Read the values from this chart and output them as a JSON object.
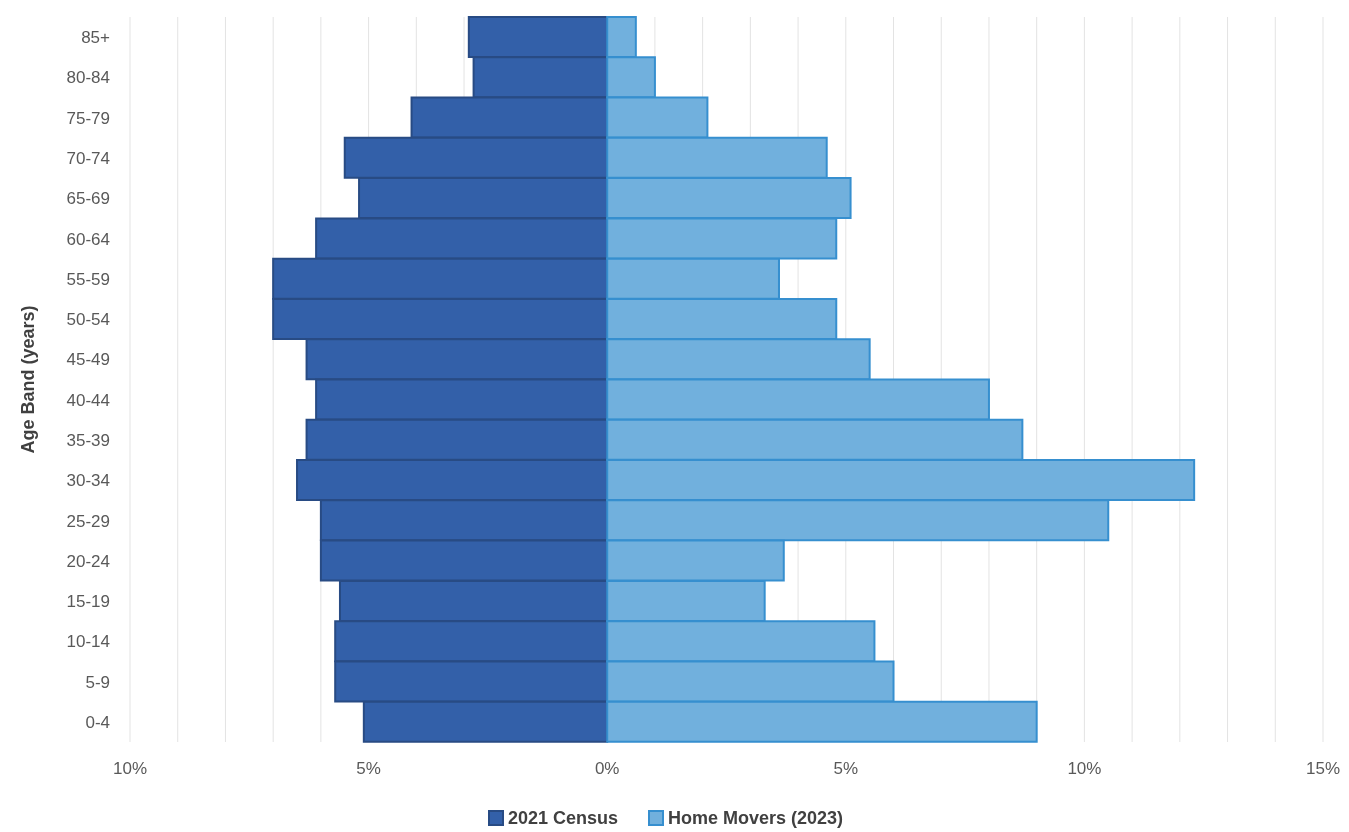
{
  "chart_data": {
    "type": "bar",
    "orientation": "horizontal",
    "stacked": true,
    "ylabel": "Age Band (years)",
    "categories": [
      "85+",
      "80-84",
      "75-79",
      "70-74",
      "65-69",
      "60-64",
      "55-59",
      "50-54",
      "45-49",
      "40-44",
      "35-39",
      "30-34",
      "25-29",
      "20-24",
      "15-19",
      "10-14",
      "5-9",
      "0-4"
    ],
    "series": [
      {
        "name": "2021 Census",
        "color": "#3360a9",
        "values": [
          -2.9,
          -2.8,
          -4.1,
          -5.5,
          -5.2,
          -6.1,
          -7.0,
          -7.0,
          -6.3,
          -6.1,
          -6.3,
          -6.5,
          -6.0,
          -6.0,
          -5.6,
          -5.7,
          -5.7,
          -5.1
        ]
      },
      {
        "name": "Home Movers (2023)",
        "color": "#71b0dd",
        "values": [
          0.6,
          1.0,
          2.1,
          4.6,
          5.1,
          4.8,
          3.6,
          4.8,
          5.5,
          8.0,
          8.7,
          12.3,
          10.5,
          3.7,
          3.3,
          5.6,
          6.0,
          9.0
        ]
      }
    ],
    "xlim": [
      -10,
      15
    ],
    "xticks": [
      {
        "value": -10,
        "label": "10%"
      },
      {
        "value": -9,
        "label": null
      },
      {
        "value": -8,
        "label": null
      },
      {
        "value": -7,
        "label": null
      },
      {
        "value": -6,
        "label": null
      },
      {
        "value": -5,
        "label": "5%"
      },
      {
        "value": -4,
        "label": null
      },
      {
        "value": -3,
        "label": null
      },
      {
        "value": 0,
        "label": "0%"
      },
      {
        "value": 1,
        "label": null
      },
      {
        "value": 2,
        "label": null
      },
      {
        "value": 3,
        "label": null
      },
      {
        "value": 4,
        "label": null
      },
      {
        "value": 5,
        "label": "5%"
      },
      {
        "value": 6,
        "label": null
      },
      {
        "value": 7,
        "label": null
      },
      {
        "value": 8,
        "label": null
      },
      {
        "value": 9,
        "label": null
      },
      {
        "value": 10,
        "label": "10%"
      },
      {
        "value": 11,
        "label": null
      },
      {
        "value": 12,
        "label": null
      },
      {
        "value": 13,
        "label": null
      },
      {
        "value": 14,
        "label": null
      },
      {
        "value": 15,
        "label": "15%"
      }
    ],
    "grid": "x",
    "legend": "bottom"
  }
}
